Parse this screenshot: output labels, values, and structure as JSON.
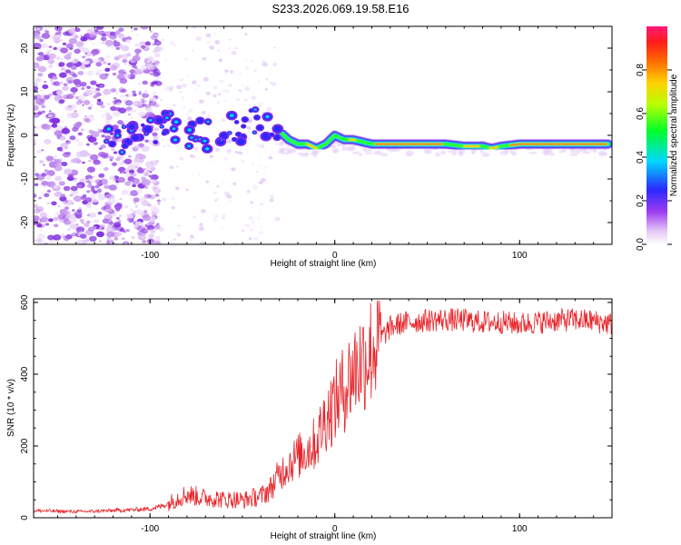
{
  "title": "S233.2026.069.19.58.E16",
  "chart_data": [
    {
      "type": "heatmap",
      "xlabel": "Height of straight line (km)",
      "ylabel": "Frequency (Hz)",
      "xlim": [
        -163,
        150
      ],
      "ylim": [
        -25,
        25
      ],
      "xticks": [
        -100,
        0,
        100
      ],
      "yticks": [
        -20,
        -10,
        0,
        10,
        20
      ],
      "colorbar": {
        "label": "Normalized spectral amplitude",
        "range": [
          0,
          1
        ],
        "ticks": [
          0.0,
          0.2,
          0.4,
          0.6,
          0.8
        ]
      },
      "ridge": {
        "x": [
          -125,
          -110,
          -100,
          -90,
          -80,
          -70,
          -60,
          -50,
          -40,
          -35,
          -30,
          -25,
          -20,
          -15,
          -10,
          -5,
          0,
          5,
          10,
          20,
          30,
          40,
          50,
          60,
          70,
          80,
          85,
          90,
          100,
          110,
          120,
          130,
          140,
          148
        ],
        "y": [
          -2,
          -1,
          0,
          2,
          1,
          0,
          1,
          2,
          3,
          3,
          1,
          -1,
          -2,
          -2,
          -3,
          -2,
          0,
          -1,
          -1,
          -2,
          -2,
          -2,
          -2,
          -2,
          -2.5,
          -2.5,
          -3,
          -2.5,
          -2,
          -2,
          -2,
          -2,
          -2,
          -2
        ]
      }
    },
    {
      "type": "line",
      "xlabel": "Height of straight line (km)",
      "ylabel": "SNR (10 * v/v)",
      "xlim": [
        -163,
        150
      ],
      "ylim": [
        0,
        610
      ],
      "xticks": [
        -100,
        0,
        100
      ],
      "yticks": [
        0,
        200,
        400,
        600
      ],
      "series": [
        {
          "name": "SNR",
          "color": "#e8252b",
          "x": [
            -163,
            -150,
            -140,
            -130,
            -120,
            -110,
            -100,
            -95,
            -90,
            -85,
            -80,
            -75,
            -70,
            -65,
            -60,
            -55,
            -50,
            -45,
            -40,
            -35,
            -30,
            -25,
            -20,
            -15,
            -10,
            -5,
            0,
            5,
            10,
            15,
            20,
            25,
            30,
            35,
            40,
            50,
            60,
            70,
            80,
            90,
            100,
            110,
            120,
            130,
            140,
            150
          ],
          "y": [
            20,
            18,
            17,
            18,
            20,
            22,
            25,
            30,
            40,
            55,
            65,
            60,
            55,
            55,
            50,
            52,
            48,
            55,
            60,
            80,
            120,
            150,
            170,
            190,
            210,
            280,
            320,
            360,
            410,
            440,
            470,
            500,
            530,
            540,
            545,
            550,
            552,
            550,
            545,
            545,
            540,
            545,
            550,
            552,
            548,
            540
          ]
        }
      ]
    }
  ]
}
